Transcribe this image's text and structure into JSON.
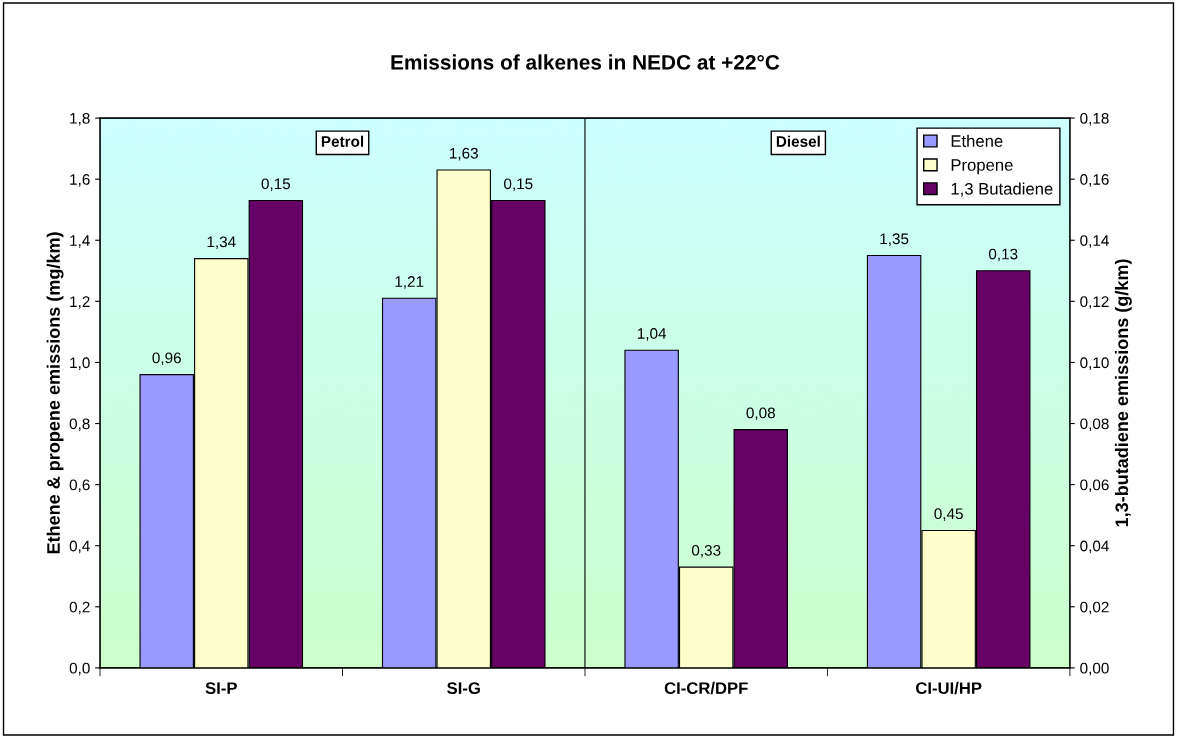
{
  "chart_data": {
    "type": "bar",
    "title": "Emissions of alkenes in NEDC at +22°C",
    "ylabel": "Ethene & propene emissions (mg/km)",
    "y2label": "1,3-butadiene emissions (g/km)",
    "categories": [
      "SI-P",
      "SI-G",
      "CI-CR/DPF",
      "CI-UI/HP"
    ],
    "series": [
      {
        "name": "Ethene",
        "color": "#9999ff",
        "values": [
          0.96,
          1.21,
          1.04,
          1.35
        ],
        "value_labels": [
          "0,96",
          "1,21",
          "1,04",
          "1,35"
        ]
      },
      {
        "name": "Propene",
        "color": "#ffffcc",
        "values": [
          1.34,
          1.63,
          0.33,
          0.45
        ],
        "value_labels": [
          "1,34",
          "1,63",
          "0,33",
          "0,45"
        ]
      },
      {
        "name": "1,3 Butadiene",
        "color": "#660066",
        "axis": "y2",
        "values": [
          0.153,
          0.153,
          0.078,
          0.13
        ],
        "value_labels": [
          "0,15",
          "0,15",
          "0,08",
          "0,13"
        ]
      }
    ],
    "ylim": [
      0,
      1.8
    ],
    "yticks": [
      {
        "value": 0,
        "label": "0,0"
      },
      {
        "value": 0.2,
        "label": "0,2"
      },
      {
        "value": 0.4,
        "label": "0,4"
      },
      {
        "value": 0.6,
        "label": "0,6"
      },
      {
        "value": 0.8,
        "label": "0,8"
      },
      {
        "value": 1.0,
        "label": "1,0"
      },
      {
        "value": 1.2,
        "label": "1,2"
      },
      {
        "value": 1.4,
        "label": "1,4"
      },
      {
        "value": 1.6,
        "label": "1,6"
      },
      {
        "value": 1.8,
        "label": "1,8"
      }
    ],
    "y2lim": [
      0,
      0.18
    ],
    "y2ticks": [
      {
        "value": 0,
        "label": "0,00"
      },
      {
        "value": 0.02,
        "label": "0,02"
      },
      {
        "value": 0.04,
        "label": "0,04"
      },
      {
        "value": 0.06,
        "label": "0,06"
      },
      {
        "value": 0.08,
        "label": "0,08"
      },
      {
        "value": 0.1,
        "label": "0,10"
      },
      {
        "value": 0.12,
        "label": "0,12"
      },
      {
        "value": 0.14,
        "label": "0,14"
      },
      {
        "value": 0.16,
        "label": "0,16"
      },
      {
        "value": 0.18,
        "label": "0,18"
      }
    ],
    "annotations": [
      "Petrol",
      "Diesel"
    ],
    "legend": "top right",
    "grid": false
  }
}
